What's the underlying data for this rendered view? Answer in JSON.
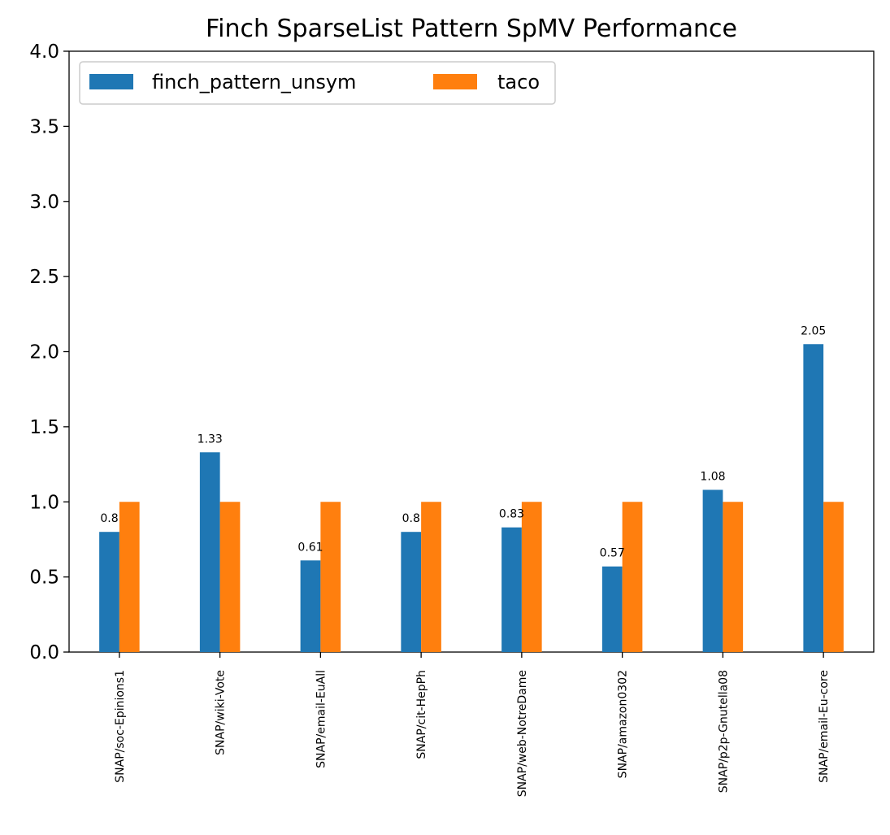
{
  "chart_data": {
    "type": "bar",
    "title": "Finch SparseList Pattern SpMV Performance",
    "xlabel": "",
    "ylabel": "",
    "ylim": [
      0,
      4.0
    ],
    "yticks": [
      "0.0",
      "0.5",
      "1.0",
      "1.5",
      "2.0",
      "2.5",
      "3.0",
      "3.5",
      "4.0"
    ],
    "categories": [
      "SNAP/soc-Epinions1",
      "SNAP/wiki-Vote",
      "SNAP/email-EuAll",
      "SNAP/cit-HepPh",
      "SNAP/web-NotreDame",
      "SNAP/amazon0302",
      "SNAP/p2p-Gnutella08",
      "SNAP/email-Eu-core"
    ],
    "series": [
      {
        "name": "finch_pattern_unsym",
        "color": "#1f77b4",
        "values": [
          0.8,
          1.33,
          0.61,
          0.8,
          0.83,
          0.57,
          1.08,
          2.05
        ],
        "labels": [
          "0.8",
          "1.33",
          "0.61",
          "0.8",
          "0.83",
          "0.57",
          "1.08",
          "2.05"
        ]
      },
      {
        "name": "taco",
        "color": "#ff7f0e",
        "values": [
          1,
          1,
          1,
          1,
          1,
          1,
          1,
          1
        ]
      }
    ],
    "legend": "top-left",
    "grid": false
  }
}
